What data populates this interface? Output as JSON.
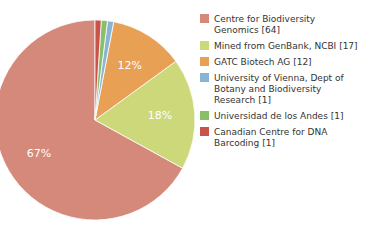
{
  "chart_data": {
    "type": "pie",
    "categories": [
      "Centre for Biodiversity\nGenomics [64]",
      "Mined from GenBank, NCBI [17]",
      "GATC Biotech AG [12]",
      "University of Vienna, Dept of\nBotany and Biodiversity\nResearch [1]",
      "Universidad de los Andes [1]",
      "Canadian Centre for DNA\nBarcoding [1]"
    ],
    "values": [
      67,
      18,
      12,
      1,
      1,
      1
    ],
    "value_labels": [
      "67%",
      "18%",
      "12%",
      null,
      null,
      null
    ],
    "data_labels": true,
    "colors": [
      "#d4897a",
      "#ccd87a",
      "#e8a055",
      "#8ab4d4",
      "#8abf6a",
      "#c8534a"
    ],
    "legend": "right"
  }
}
